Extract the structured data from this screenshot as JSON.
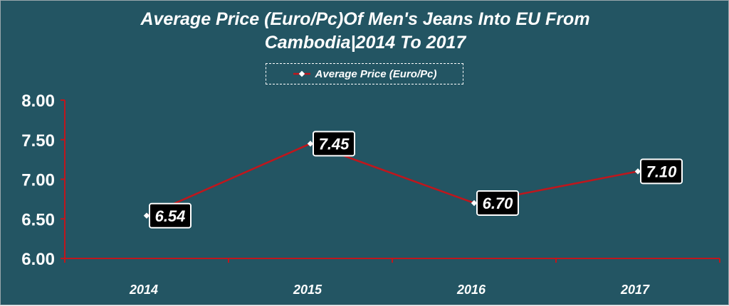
{
  "chart_data": {
    "type": "line",
    "title": "Average Price (Euro/Pc)Of Men's Jeans Into EU From Cambodia|2014 To 2017",
    "title_lines": [
      "Average Price (Euro/Pc)Of Men's Jeans Into EU From",
      "Cambodia|2014 To 2017"
    ],
    "categories": [
      "2014",
      "2015",
      "2016",
      "2017"
    ],
    "series": [
      {
        "name": "Average Price (Euro/Pc)",
        "values": [
          6.54,
          7.45,
          6.7,
          7.1
        ],
        "color": "#c0161c"
      }
    ],
    "data_labels": [
      "6.54",
      "7.45",
      "6.70",
      "7.10"
    ],
    "yticks": [
      "6.00",
      "6.50",
      "7.00",
      "7.50",
      "8.00"
    ],
    "ylim": [
      6.0,
      8.0
    ],
    "legend_position": "top-center",
    "grid": false,
    "background": "#235563",
    "axis_color": "#c0161c"
  }
}
